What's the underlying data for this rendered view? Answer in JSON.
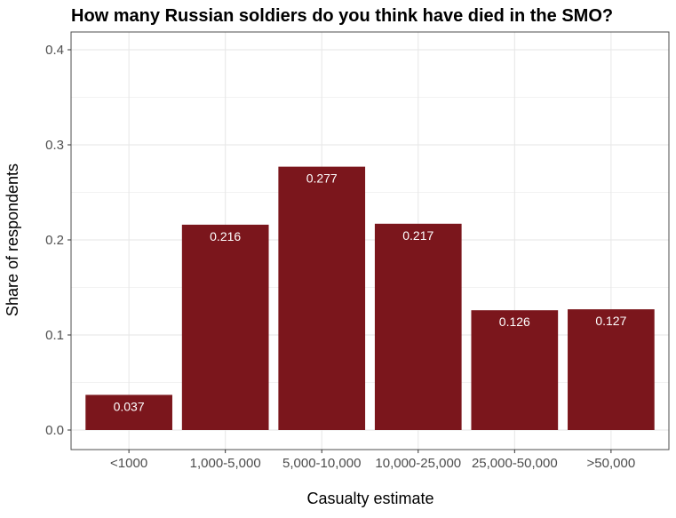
{
  "chart_data": {
    "type": "bar",
    "title": "How many Russian soldiers do you think have died in the SMO?",
    "xlabel": "Casualty estimate",
    "ylabel": "Share of respondents",
    "categories": [
      "<1000",
      "1,000-5,000",
      "5,000-10,000",
      "10,000-25,000",
      "25,000-50,000",
      ">50,000"
    ],
    "values": [
      0.037,
      0.216,
      0.277,
      0.217,
      0.126,
      0.127
    ],
    "data_labels": [
      "0.037",
      "0.216",
      "0.277",
      "0.217",
      "0.126",
      "0.127"
    ],
    "ylim": [
      0,
      0.42
    ],
    "yticks": [
      0.0,
      0.1,
      0.2,
      0.3,
      0.4
    ],
    "ytick_labels": [
      "0.0",
      "0.1",
      "0.2",
      "0.3",
      "0.4"
    ],
    "grid": true,
    "legend": "none",
    "colors": {
      "bar": "#7B161C",
      "grid_major": "#e6e6e6",
      "grid_minor": "#f2f2f2",
      "panel_border": "#4d4d4d"
    }
  }
}
